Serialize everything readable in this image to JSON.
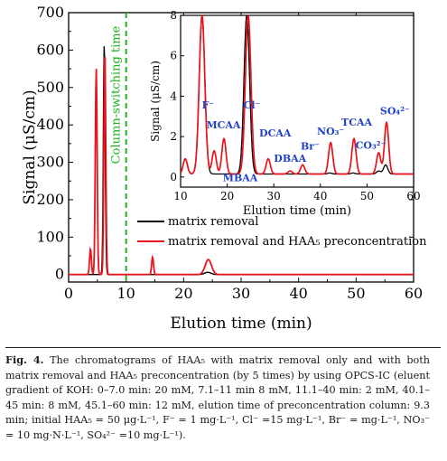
{
  "chart_data": [
    {
      "type": "line",
      "xlabel": "Elution time (min)",
      "ylabel": "Signal (μS/cm)",
      "xlim": [
        0,
        60
      ],
      "ylim": [
        -20,
        700
      ],
      "x_ticks": [
        "0",
        "10",
        "20",
        "30",
        "40",
        "50",
        "60"
      ],
      "y_ticks": [
        "0",
        "100",
        "200",
        "300",
        "400",
        "500",
        "600",
        "700"
      ],
      "marker_line": {
        "x": 10,
        "label": "Column-switching time",
        "color": "#1db21d",
        "style": "dashed"
      },
      "legend_position": "lower-right",
      "series": [
        {
          "name": "matrix removal",
          "color": "#000000",
          "peaks": [
            {
              "x": 3.8,
              "y": 0
            },
            {
              "x": 4.8,
              "y": 0
            },
            {
              "x": 6.2,
              "y": 620
            },
            {
              "x": 14.6,
              "y": 0
            },
            {
              "x": 24.2,
              "y": 6
            }
          ]
        },
        {
          "name": "matrix removal and HAA₅ preconcentration",
          "color": "#e8141c",
          "peaks": [
            {
              "x": 3.8,
              "y": 68
            },
            {
              "x": 4.8,
              "y": 550
            },
            {
              "x": 6.3,
              "y": 600
            },
            {
              "x": 14.6,
              "y": 47
            },
            {
              "x": 24.3,
              "y": 40
            }
          ]
        }
      ]
    },
    {
      "type": "line",
      "inset": true,
      "xlabel": "Elution time (min)",
      "ylabel": "Signal (μS/cm)",
      "xlim": [
        10,
        60
      ],
      "ylim": [
        -0.5,
        8
      ],
      "x_ticks": [
        "10",
        "20",
        "30",
        "40",
        "50",
        "60"
      ],
      "y_ticks": [
        "0",
        "2",
        "4",
        "6",
        "8"
      ],
      "annotations": [
        {
          "label": "F⁻",
          "x": 15.5
        },
        {
          "label": "Cl⁻",
          "x": 24
        },
        {
          "label": "MCAA",
          "x": 19.5
        },
        {
          "label": "MBAA",
          "x": 21.5
        },
        {
          "label": "DCAA",
          "x": 30
        },
        {
          "label": "DBAA",
          "x": 34
        },
        {
          "label": "Br⁻",
          "x": 36.5
        },
        {
          "label": "NO₃⁻",
          "x": 41.5
        },
        {
          "label": "TCAA",
          "x": 46.5
        },
        {
          "label": "CO₃²⁻",
          "x": 51
        },
        {
          "label": "SO₄²⁻",
          "x": 54
        }
      ],
      "series": [
        {
          "name": "matrix removal",
          "color": "#000000",
          "peaks": [
            {
              "x": 11,
              "y": 0.9
            },
            {
              "x": 14.6,
              "y": 8
            },
            {
              "x": 24.2,
              "y": 8
            },
            {
              "x": 42,
              "y": 0.2
            },
            {
              "x": 47,
              "y": 0.2
            },
            {
              "x": 52.5,
              "y": 0.3
            },
            {
              "x": 54,
              "y": 0.6
            }
          ]
        },
        {
          "name": "matrix removal and HAA₅ preconcentration",
          "color": "#e8141c",
          "peaks": [
            {
              "x": 11,
              "y": 0.9
            },
            {
              "x": 14.6,
              "y": 8
            },
            {
              "x": 17.2,
              "y": 1.3
            },
            {
              "x": 19.3,
              "y": 1.9
            },
            {
              "x": 24.5,
              "y": 8
            },
            {
              "x": 28.8,
              "y": 0.9
            },
            {
              "x": 33.5,
              "y": 0.3
            },
            {
              "x": 36.2,
              "y": 0.6
            },
            {
              "x": 42.2,
              "y": 1.7
            },
            {
              "x": 47.2,
              "y": 1.9
            },
            {
              "x": 52.5,
              "y": 1.2
            },
            {
              "x": 54.2,
              "y": 2.7
            }
          ]
        }
      ]
    }
  ],
  "caption": {
    "label": "Fig. 4.",
    "text": " The chromatograms of HAA₅ with matrix removal only and with both matrix removal and HAA₅ preconcentration (by 5 times) by using OPCS-IC (eluent gradient of KOH: 0–7.0 min: 20 mM, 7.1–11 min 8 mM, 11.1–40 min: 2 mM, 40.1–45 min: 8 mM, 45.1–60 min: 12 mM, elution time of preconcentration column: 9.3 min; initial HAA₅ = 50 μg·L⁻¹, F⁻ = 1 mg·L⁻¹, Cl⁻ =15 mg·L⁻¹, Br⁻ = mg·L⁻¹, NO₃⁻ = 10 mg·N·L⁻¹, SO₄²⁻ =10 mg·L⁻¹)."
  }
}
